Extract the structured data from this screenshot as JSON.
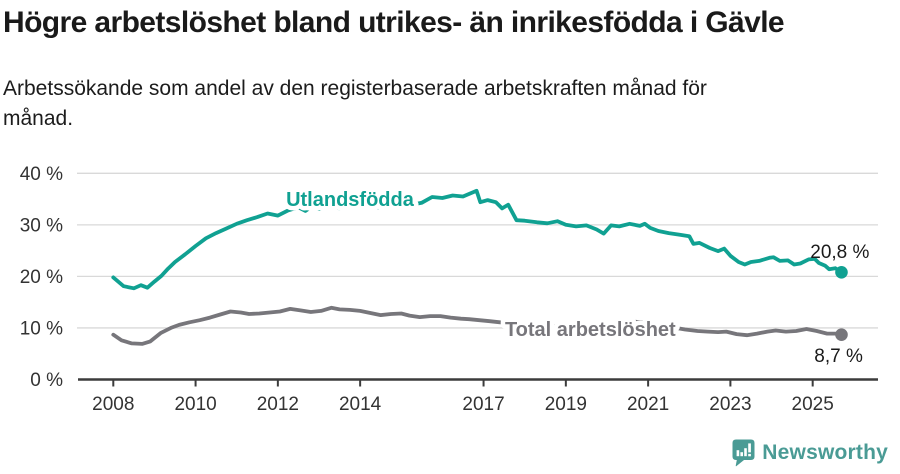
{
  "header": {
    "title": "Högre arbetslöshet bland utrikes- än inrikesfödda i Gävle",
    "subtitle_line1": "Arbetssökande som andel av den registerbaserade arbetskraften månad för",
    "subtitle_line2": "månad."
  },
  "footer": {
    "brand": "Newsworthy",
    "brand_color": "#4a9b95"
  },
  "chart_data": {
    "type": "line",
    "title": "Högre arbetslöshet bland utrikes- än inrikesfödda i Gävle",
    "subtitle": "Arbetssökande som andel av den registerbaserade arbetskraften månad för månad.",
    "xlabel": "",
    "ylabel": "",
    "ylim": [
      0,
      40
    ],
    "xlim": [
      2007.1,
      2026.6
    ],
    "grid": "horizontal",
    "legend_position": "inline-labels",
    "y_ticks": [
      {
        "v": 0,
        "label": "0 %"
      },
      {
        "v": 10,
        "label": "10 %"
      },
      {
        "v": 20,
        "label": "20 %"
      },
      {
        "v": 30,
        "label": "30 %"
      },
      {
        "v": 40,
        "label": "40 %"
      }
    ],
    "x_ticks": [
      {
        "v": 2008,
        "label": "2008"
      },
      {
        "v": 2010,
        "label": "2010"
      },
      {
        "v": 2012,
        "label": "2012"
      },
      {
        "v": 2014,
        "label": "2014"
      },
      {
        "v": 2017,
        "label": "2017"
      },
      {
        "v": 2019,
        "label": "2019"
      },
      {
        "v": 2021,
        "label": "2021"
      },
      {
        "v": 2023,
        "label": "2023"
      },
      {
        "v": 2025,
        "label": "2025"
      }
    ],
    "axis_color": "#3c3c3c",
    "grid_color": "#d9d9d9",
    "tick_label_color": "#333333",
    "series": [
      {
        "name": "Utlandsfödda",
        "color": "#10a192",
        "end_value_label": "20,8 %",
        "end_value": 20.8,
        "label_anchor": {
          "x": 2012.2,
          "y": 33.65
        },
        "value_label_anchor": {
          "x": 2025.66,
          "y": 23.55
        },
        "points": [
          [
            2008.0,
            19.8
          ],
          [
            2008.25,
            18.1
          ],
          [
            2008.5,
            17.7
          ],
          [
            2008.67,
            18.3
          ],
          [
            2008.83,
            17.8
          ],
          [
            2009.0,
            19.0
          ],
          [
            2009.17,
            20.1
          ],
          [
            2009.33,
            21.5
          ],
          [
            2009.5,
            22.8
          ],
          [
            2009.75,
            24.3
          ],
          [
            2010.0,
            25.9
          ],
          [
            2010.25,
            27.4
          ],
          [
            2010.5,
            28.4
          ],
          [
            2010.75,
            29.3
          ],
          [
            2011.0,
            30.2
          ],
          [
            2011.25,
            30.9
          ],
          [
            2011.5,
            31.5
          ],
          [
            2011.75,
            32.2
          ],
          [
            2012.0,
            31.8
          ],
          [
            2012.25,
            32.8
          ],
          [
            2012.5,
            33.4
          ],
          [
            2012.67,
            32.7
          ],
          [
            2012.83,
            33.6
          ],
          [
            2013.0,
            33.1
          ],
          [
            2013.25,
            33.8
          ],
          [
            2013.5,
            33.2
          ],
          [
            2013.75,
            34.0
          ],
          [
            2014.0,
            33.3
          ],
          [
            2014.25,
            33.6
          ],
          [
            2014.5,
            33.3
          ],
          [
            2014.75,
            33.7
          ],
          [
            2015.0,
            33.5
          ],
          [
            2015.25,
            33.9
          ],
          [
            2015.5,
            34.3
          ],
          [
            2015.75,
            35.4
          ],
          [
            2016.0,
            35.2
          ],
          [
            2016.25,
            35.7
          ],
          [
            2016.5,
            35.5
          ],
          [
            2016.83,
            36.6
          ],
          [
            2016.92,
            34.4
          ],
          [
            2017.1,
            34.8
          ],
          [
            2017.3,
            34.4
          ],
          [
            2017.45,
            33.2
          ],
          [
            2017.6,
            33.9
          ],
          [
            2017.8,
            30.9
          ],
          [
            2018.0,
            30.8
          ],
          [
            2018.3,
            30.5
          ],
          [
            2018.55,
            30.3
          ],
          [
            2018.8,
            30.7
          ],
          [
            2019.0,
            30.0
          ],
          [
            2019.25,
            29.7
          ],
          [
            2019.5,
            29.9
          ],
          [
            2019.75,
            29.1
          ],
          [
            2019.92,
            28.3
          ],
          [
            2020.1,
            29.9
          ],
          [
            2020.3,
            29.7
          ],
          [
            2020.55,
            30.2
          ],
          [
            2020.8,
            29.8
          ],
          [
            2020.92,
            30.2
          ],
          [
            2021.05,
            29.4
          ],
          [
            2021.25,
            28.8
          ],
          [
            2021.5,
            28.4
          ],
          [
            2021.75,
            28.1
          ],
          [
            2022.0,
            27.8
          ],
          [
            2022.1,
            26.3
          ],
          [
            2022.25,
            26.5
          ],
          [
            2022.5,
            25.5
          ],
          [
            2022.7,
            24.9
          ],
          [
            2022.85,
            25.4
          ],
          [
            2023.0,
            24.0
          ],
          [
            2023.2,
            22.8
          ],
          [
            2023.35,
            22.3
          ],
          [
            2023.5,
            22.8
          ],
          [
            2023.7,
            23.0
          ],
          [
            2023.95,
            23.6
          ],
          [
            2024.05,
            23.7
          ],
          [
            2024.2,
            23.0
          ],
          [
            2024.4,
            23.1
          ],
          [
            2024.55,
            22.3
          ],
          [
            2024.7,
            22.5
          ],
          [
            2024.9,
            23.3
          ],
          [
            2025.05,
            23.4
          ],
          [
            2025.15,
            22.6
          ],
          [
            2025.3,
            22.1
          ],
          [
            2025.4,
            21.4
          ],
          [
            2025.55,
            21.6
          ],
          [
            2025.7,
            20.8
          ]
        ]
      },
      {
        "name": "Total arbetslöshet",
        "color": "#77767b",
        "end_value_label": "8,7 %",
        "end_value": 8.7,
        "label_anchor": {
          "x": 2017.52,
          "y": 8.44
        },
        "value_label_anchor": {
          "x": 2025.63,
          "y": 3.4
        },
        "points": [
          [
            2008.0,
            8.7
          ],
          [
            2008.2,
            7.6
          ],
          [
            2008.45,
            7.0
          ],
          [
            2008.7,
            6.9
          ],
          [
            2008.9,
            7.4
          ],
          [
            2009.15,
            9.0
          ],
          [
            2009.4,
            10.0
          ],
          [
            2009.6,
            10.6
          ],
          [
            2009.85,
            11.1
          ],
          [
            2010.1,
            11.5
          ],
          [
            2010.35,
            12.0
          ],
          [
            2010.6,
            12.6
          ],
          [
            2010.85,
            13.2
          ],
          [
            2011.1,
            13.0
          ],
          [
            2011.3,
            12.7
          ],
          [
            2011.55,
            12.8
          ],
          [
            2011.8,
            13.0
          ],
          [
            2012.05,
            13.2
          ],
          [
            2012.3,
            13.7
          ],
          [
            2012.55,
            13.4
          ],
          [
            2012.8,
            13.1
          ],
          [
            2013.05,
            13.3
          ],
          [
            2013.3,
            13.9
          ],
          [
            2013.5,
            13.6
          ],
          [
            2013.75,
            13.5
          ],
          [
            2014.0,
            13.3
          ],
          [
            2014.25,
            12.9
          ],
          [
            2014.5,
            12.5
          ],
          [
            2014.75,
            12.7
          ],
          [
            2015.0,
            12.8
          ],
          [
            2015.2,
            12.4
          ],
          [
            2015.45,
            12.1
          ],
          [
            2015.7,
            12.3
          ],
          [
            2015.95,
            12.3
          ],
          [
            2016.2,
            12.0
          ],
          [
            2016.45,
            11.8
          ],
          [
            2016.65,
            11.7
          ],
          [
            2016.9,
            11.5
          ],
          [
            2017.15,
            11.3
          ],
          [
            2017.4,
            11.1
          ],
          [
            2017.7,
            11.0
          ],
          [
            2018.0,
            10.8
          ],
          [
            2018.3,
            10.6
          ],
          [
            2018.6,
            10.4
          ],
          [
            2019.0,
            10.2
          ],
          [
            2019.4,
            10.1
          ],
          [
            2019.8,
            10.0
          ],
          [
            2020.1,
            10.8
          ],
          [
            2020.4,
            11.3
          ],
          [
            2020.7,
            11.2
          ],
          [
            2021.0,
            11.0
          ],
          [
            2021.3,
            10.6
          ],
          [
            2021.6,
            10.1
          ],
          [
            2021.9,
            9.7
          ],
          [
            2022.2,
            9.4
          ],
          [
            2022.45,
            9.3
          ],
          [
            2022.7,
            9.2
          ],
          [
            2022.9,
            9.3
          ],
          [
            2023.15,
            8.8
          ],
          [
            2023.4,
            8.6
          ],
          [
            2023.65,
            8.9
          ],
          [
            2023.9,
            9.3
          ],
          [
            2024.1,
            9.5
          ],
          [
            2024.35,
            9.3
          ],
          [
            2024.6,
            9.4
          ],
          [
            2024.85,
            9.8
          ],
          [
            2025.1,
            9.4
          ],
          [
            2025.35,
            8.9
          ],
          [
            2025.55,
            8.9
          ],
          [
            2025.7,
            8.7
          ]
        ]
      }
    ]
  }
}
